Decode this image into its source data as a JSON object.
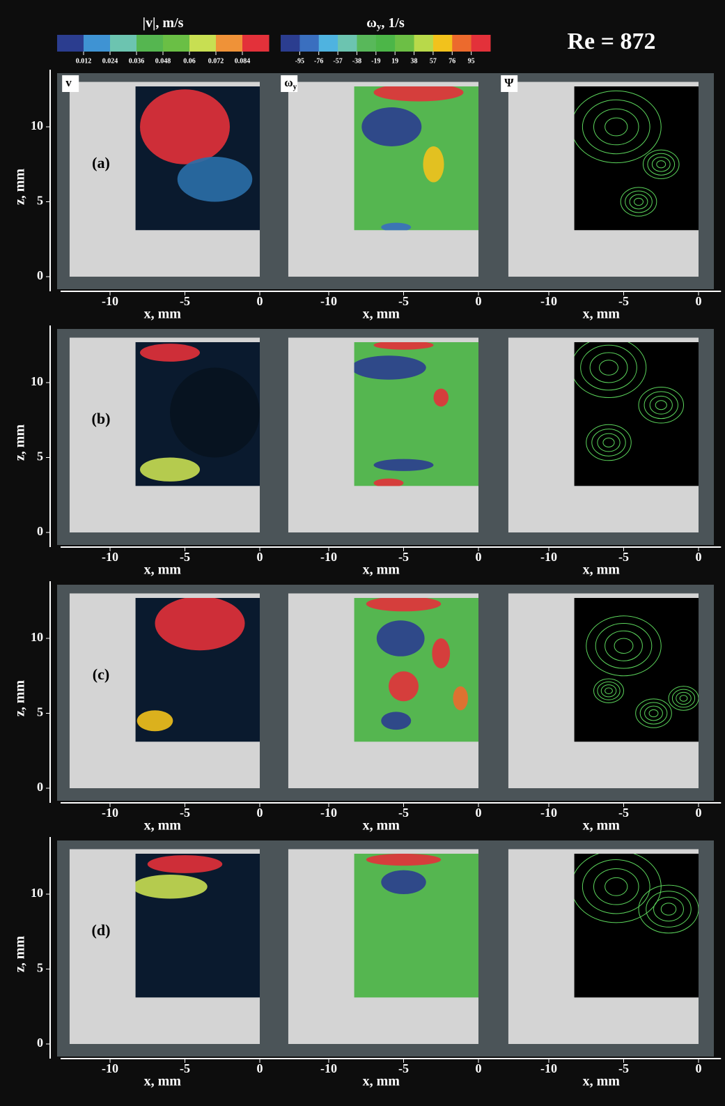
{
  "title": "Re = 872",
  "colorbars": [
    {
      "label": [
        {
          "text": "|v|, m/s"
        }
      ],
      "colors": [
        "#2b3d8f",
        "#3f93d3",
        "#6cc4b0",
        "#55b650",
        "#6abf45",
        "#c8df52",
        "#ef9238",
        "#e3313a"
      ],
      "ticks": [
        0.012,
        0.024,
        0.036,
        0.048,
        0.06,
        0.072,
        0.084
      ]
    },
    {
      "label": [
        {
          "text": "ω"
        },
        {
          "text": "y",
          "sub": true
        },
        {
          "text": ", 1/s"
        }
      ],
      "colors": [
        "#2b3d8f",
        "#3a6fbf",
        "#4fb3e0",
        "#6cc4b0",
        "#58b85a",
        "#4cb648",
        "#6cbf45",
        "#b8d94a",
        "#f2c21c",
        "#ec6a2d",
        "#e3313a"
      ],
      "ticks": [
        -95,
        -76,
        -57,
        -38,
        -19,
        19,
        38,
        57,
        76,
        95
      ]
    }
  ],
  "panel_titles": [
    [
      {
        "text": "v"
      }
    ],
    [
      {
        "text": "ω"
      },
      {
        "text": "y",
        "sub": true
      }
    ],
    [
      {
        "text": "Ψ"
      }
    ]
  ],
  "rows": [
    "(a)",
    "(b)",
    "(c)",
    "(d)"
  ],
  "x_axis": {
    "label": "x, mm",
    "ticks": [
      -10,
      -5,
      0
    ]
  },
  "z_axis": {
    "label": "z, mm",
    "ticks": [
      0,
      5,
      10
    ]
  }
}
